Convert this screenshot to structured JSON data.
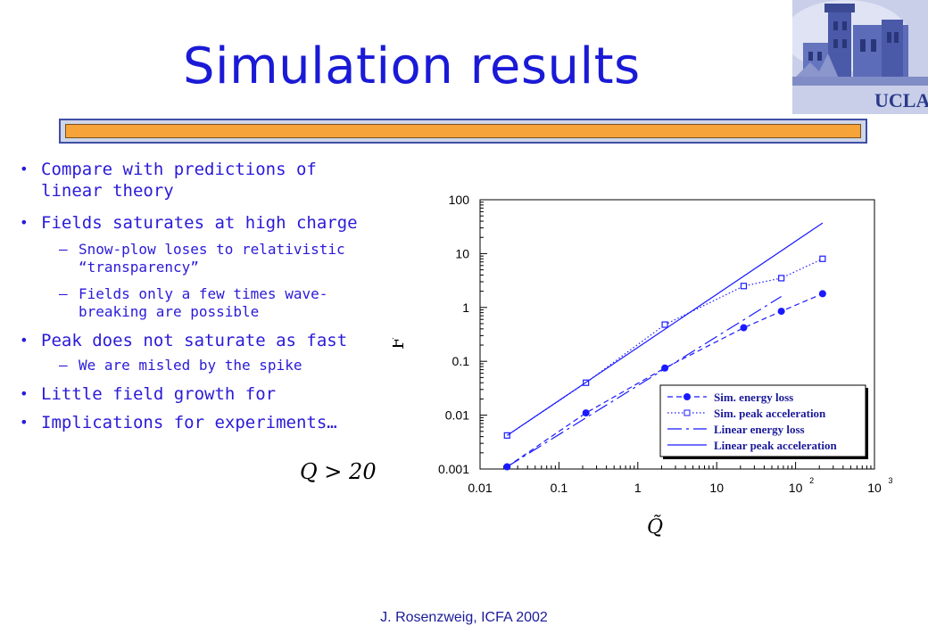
{
  "slide": {
    "title": "Simulation results",
    "logo_text": "UCLA",
    "footer": "J. Rosenzweig, ICFA 2002",
    "condition": "Q > 20",
    "bullets": [
      {
        "text": "Compare with predictions of linear theory",
        "lines": [
          "Compare with predictions of",
          "linear theory"
        ]
      },
      {
        "text": "Fields saturates at high charge",
        "lines": [
          "Fields saturates at high charge"
        ],
        "sub": [
          {
            "lines": [
              "Snow-plow loses to relativistic",
              "“transparency”"
            ]
          },
          {
            "lines": [
              "Fields only a few times wave-",
              "breaking are possible"
            ]
          }
        ]
      },
      {
        "text": "Peak does not saturate as fast",
        "lines": [
          "Peak does not saturate as fast"
        ],
        "sub": [
          {
            "lines": [
              "We are misled by the spike"
            ]
          }
        ]
      },
      {
        "text": "Little field growth for",
        "lines": [
          "Little field growth for"
        ]
      },
      {
        "text": "Implications for experiments…",
        "lines": [
          "Implications for experiments…"
        ]
      }
    ]
  },
  "chart_data": {
    "type": "line",
    "xscale": "log",
    "yscale": "log",
    "xlim": [
      0.01,
      1000
    ],
    "ylim": [
      0.001,
      100
    ],
    "xlabel": "Q̃",
    "ylabel": "F̃",
    "x_ticks": [
      "0.01",
      "0.1",
      "1",
      "10",
      "10",
      "10"
    ],
    "x_tick_exponents": [
      "",
      "",
      "",
      "",
      "2",
      "3"
    ],
    "y_ticks": [
      "0.001",
      "0.01",
      "0.1",
      "1",
      "10",
      "100"
    ],
    "legend_position": "bottom-right",
    "series": [
      {
        "name": "Sim. energy loss",
        "x": [
          0.022,
          0.22,
          2.2,
          22,
          66,
          220
        ],
        "y": [
          0.0011,
          0.011,
          0.075,
          0.42,
          0.85,
          1.8
        ]
      },
      {
        "name": "Sim. peak acceleration",
        "x": [
          0.022,
          0.22,
          2.2,
          22,
          66,
          220
        ],
        "y": [
          0.0042,
          0.04,
          0.48,
          2.5,
          3.5,
          8.0
        ]
      },
      {
        "name": "Linear energy loss",
        "x": [
          0.022,
          66
        ],
        "y": [
          0.0011,
          1.6
        ]
      },
      {
        "name": "Linear peak acceleration",
        "x": [
          0.022,
          220
        ],
        "y": [
          0.0042,
          37
        ]
      }
    ]
  }
}
